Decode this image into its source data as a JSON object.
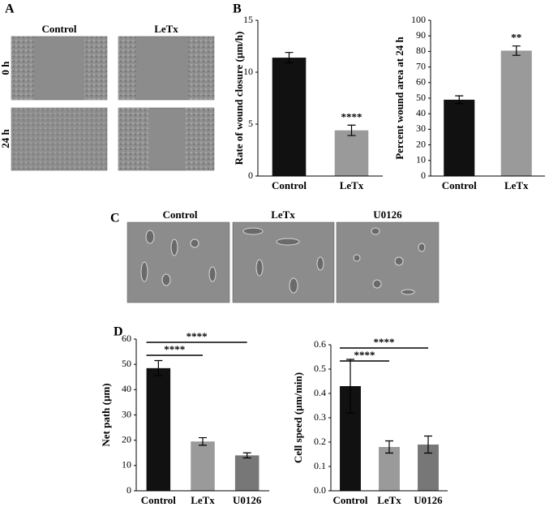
{
  "panel_letters": [
    "A",
    "B",
    "C",
    "D"
  ],
  "panel_a": {
    "columns": [
      "Control",
      "LeTx"
    ],
    "rows": [
      "0 h",
      "24 h"
    ]
  },
  "panel_c": {
    "columns": [
      "Control",
      "LeTx",
      "U0126"
    ]
  },
  "chart_data": [
    {
      "type": "bar",
      "ylabel": "Rate of wound closure (µm/h)",
      "categories": [
        "Control",
        "LeTx"
      ],
      "values": [
        11.4,
        4.4
      ],
      "errors": [
        0.5,
        0.5
      ],
      "colors": [
        "#111111",
        "#9a9a9a"
      ],
      "ylim": [
        0,
        15
      ],
      "yticks": [
        0,
        5,
        10,
        15
      ],
      "value_annotations": [
        null,
        "****"
      ]
    },
    {
      "type": "bar",
      "ylabel": "Percent wound area at 24 h",
      "categories": [
        "Control",
        "LeTx"
      ],
      "values": [
        49,
        80.5
      ],
      "errors": [
        2.5,
        3
      ],
      "colors": [
        "#111111",
        "#9a9a9a"
      ],
      "ylim": [
        0,
        100
      ],
      "yticks": [
        0,
        10,
        20,
        30,
        40,
        50,
        60,
        70,
        80,
        90,
        100
      ],
      "value_annotations": [
        null,
        "**"
      ]
    },
    {
      "type": "bar",
      "ylabel": "Net path (µm)",
      "categories": [
        "Control",
        "LeTx",
        "U0126"
      ],
      "values": [
        48.5,
        19.5,
        14
      ],
      "errors": [
        3,
        1.5,
        1
      ],
      "colors": [
        "#111111",
        "#9a9a9a",
        "#777777"
      ],
      "ylim": [
        0,
        60
      ],
      "yticks": [
        0,
        10,
        20,
        30,
        40,
        50,
        60
      ],
      "comparisons": [
        {
          "label": "****",
          "between": [
            "Control",
            "LeTx"
          ]
        },
        {
          "label": "****",
          "between": [
            "Control",
            "U0126"
          ]
        }
      ]
    },
    {
      "type": "bar",
      "ylabel": "Cell speed (µm/min)",
      "categories": [
        "Control",
        "LeTx",
        "U0126"
      ],
      "values": [
        0.43,
        0.18,
        0.19
      ],
      "errors": [
        0.11,
        0.025,
        0.035
      ],
      "colors": [
        "#111111",
        "#9a9a9a",
        "#777777"
      ],
      "ylim": [
        0,
        0.6
      ],
      "yticks": [
        {
          "value": 0,
          "label": "0.0"
        },
        0.1,
        0.2,
        0.3,
        0.4,
        0.5,
        0.6
      ],
      "comparisons": [
        {
          "label": "****",
          "between": [
            "Control",
            "LeTx"
          ]
        },
        {
          "label": "****",
          "between": [
            "Control",
            "U0126"
          ]
        }
      ]
    }
  ]
}
